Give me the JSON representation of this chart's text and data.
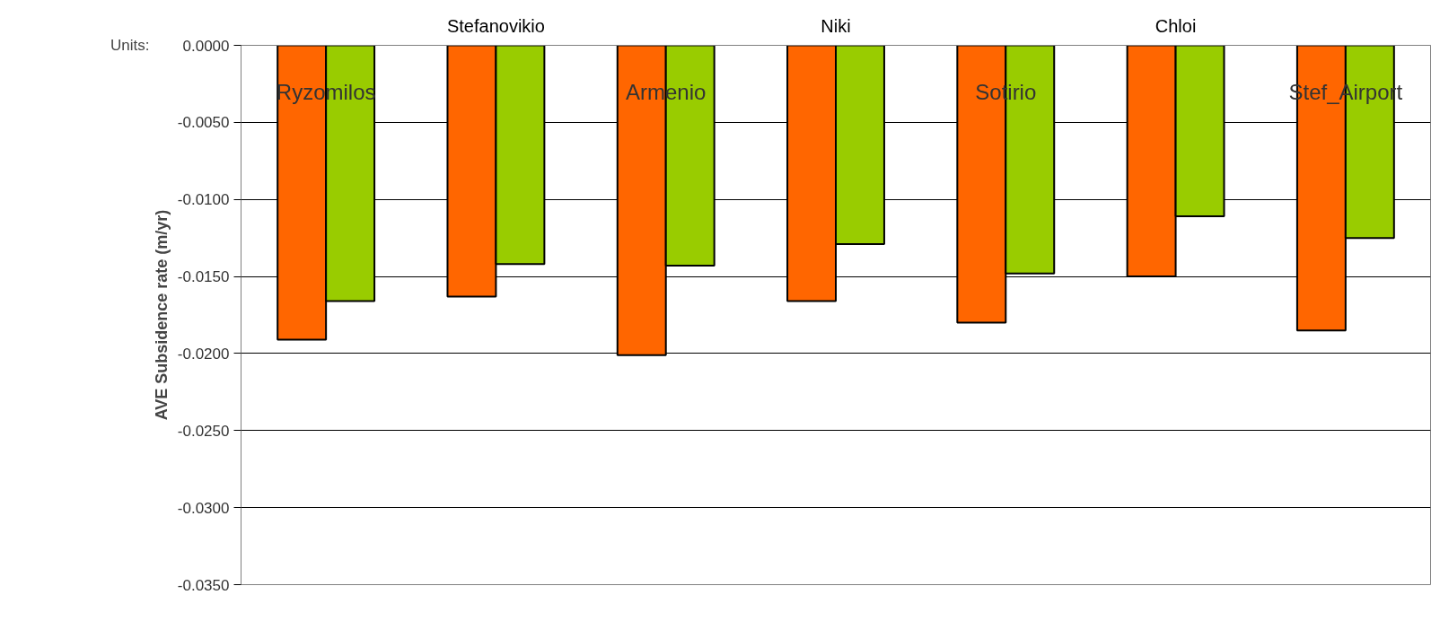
{
  "chart_data": {
    "type": "bar",
    "ylabel": "AVE Subsidence rate (m/yr)",
    "categories": [
      "Ryzomilos",
      "Stefanovikio",
      "Armenio",
      "Niki",
      "Sotirio",
      "Chloi",
      "Stef_Airport"
    ],
    "series": [
      {
        "color": "#ff6600",
        "values": [
          -0.0191,
          -0.0163,
          -0.0201,
          -0.0166,
          -0.018,
          -0.015,
          -0.0185
        ]
      },
      {
        "color": "#99cc00",
        "values": [
          -0.0166,
          -0.0142,
          -0.0143,
          -0.0129,
          -0.0148,
          -0.0111,
          -0.0125
        ]
      }
    ],
    "ylim": [
      -0.035,
      0
    ],
    "yticks": [
      {
        "value": -0.035,
        "label": "-0.0350"
      },
      {
        "value": -0.03,
        "label": "-0.0300"
      },
      {
        "value": -0.025,
        "label": "-0.0250"
      },
      {
        "value": -0.02,
        "label": "-0.0200"
      },
      {
        "value": -0.015,
        "label": "-0.0150"
      },
      {
        "value": -0.01,
        "label": "-0.0100"
      },
      {
        "value": -0.005,
        "label": "-0.0050"
      },
      {
        "value": 0,
        "label": "0.0000"
      }
    ],
    "grid": "y",
    "annotations": [
      "Units:"
    ]
  }
}
